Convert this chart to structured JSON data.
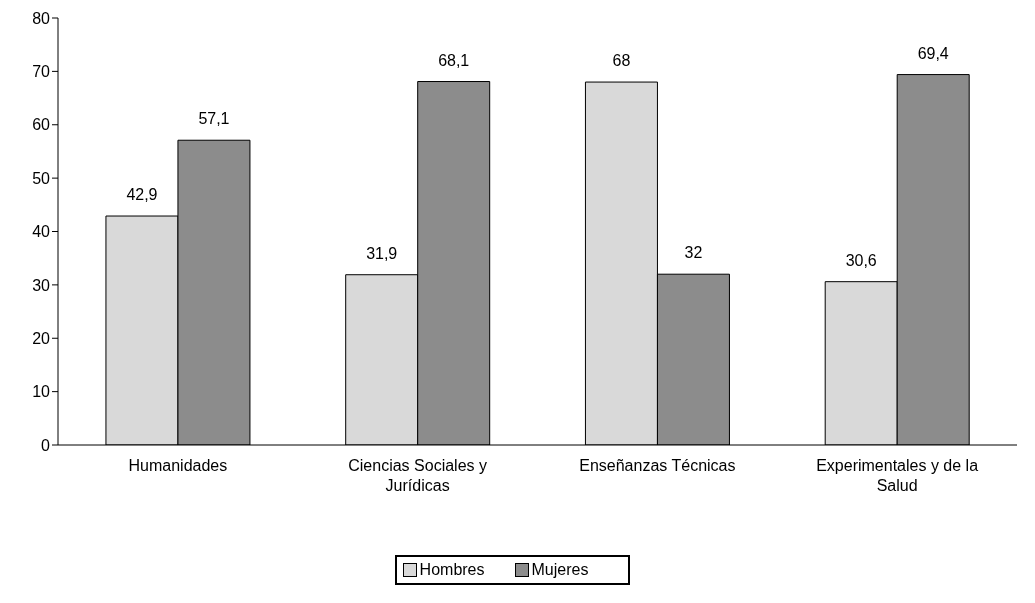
{
  "chart_data": {
    "type": "bar",
    "categories": [
      "Humanidades",
      "Ciencias Sociales y Jurídicas",
      "Enseñanzas Técnicas",
      "Experimentales y de la Salud"
    ],
    "series": [
      {
        "name": "Hombres",
        "color": "#d9d9d9",
        "values": [
          42.9,
          31.9,
          68,
          30.6
        ],
        "value_labels": [
          "42,9",
          "31,9",
          "68",
          "30,6"
        ]
      },
      {
        "name": "Mujeres",
        "color": "#8c8c8c",
        "values": [
          57.1,
          68.1,
          32,
          69.4
        ],
        "value_labels": [
          "57,1",
          "68,1",
          "32",
          "69,4"
        ]
      }
    ],
    "ylim": [
      0,
      80
    ],
    "yticks": [
      0,
      10,
      20,
      30,
      40,
      50,
      60,
      70,
      80
    ],
    "grid": false,
    "legend": "bottom"
  }
}
